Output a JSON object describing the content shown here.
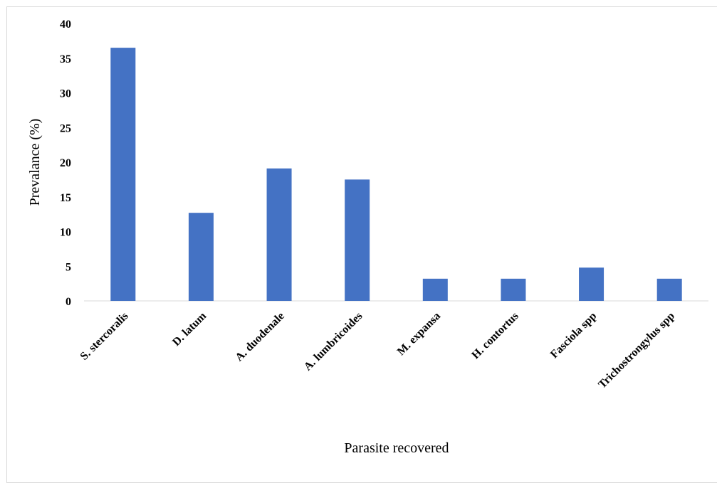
{
  "chart_data": {
    "type": "bar",
    "title": "",
    "xlabel": "Parasite recovered",
    "ylabel": "Prevalance (%)",
    "categories": [
      "S. stercoralis",
      "D. latum",
      "A. duodenale",
      "A. lumbricoides",
      "M. expansa",
      "H. contortus",
      "Fasciola spp",
      "Trichostrongylus spp"
    ],
    "values": [
      36.5,
      12.7,
      19.1,
      17.5,
      3.2,
      3.2,
      4.8,
      3.2
    ],
    "ylim": [
      0,
      40
    ],
    "yticks": [
      "0",
      "5",
      "10",
      "15",
      "20",
      "25",
      "30",
      "35",
      "40"
    ],
    "grid": false,
    "legend": "none",
    "bar_color": "#4472C4",
    "axis_color": "#d9d9d9"
  }
}
